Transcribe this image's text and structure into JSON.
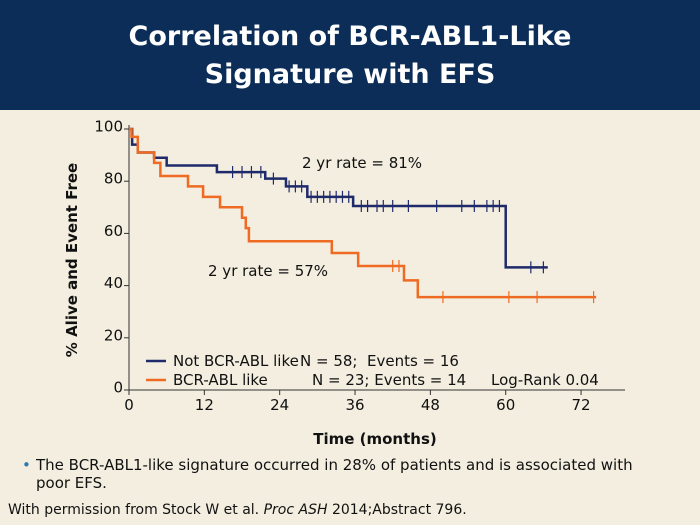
{
  "header": {
    "title_lines": [
      "Correlation of BCR-ABL1-Like",
      "Signature with EFS"
    ]
  },
  "chart_data": {
    "type": "km-step",
    "x_label": "Time (months)",
    "y_label": "% Alive and Event Free",
    "xlim": [
      0,
      79
    ],
    "ylim": [
      0,
      100
    ],
    "xticks": [
      0,
      12,
      24,
      36,
      48,
      60,
      72
    ],
    "yticks": [
      0,
      20,
      40,
      60,
      80,
      100
    ],
    "series": [
      {
        "name": "Not BCR-ABL like",
        "legend_note": "N = 58;  Events = 16",
        "color": "#1f2a6b",
        "x": [
          0,
          0.5,
          1.4,
          4,
          6,
          14,
          21.7,
          25,
          28.4,
          35.7,
          60,
          66.7
        ],
        "y": [
          100,
          94,
          91,
          89,
          86,
          83.5,
          81,
          78,
          74,
          70.5,
          47,
          47
        ],
        "censor_x": [
          16.5,
          18,
          19.5,
          21,
          23,
          25.5,
          26.5,
          27.5,
          29,
          30,
          31,
          32,
          33,
          34,
          35,
          37,
          38,
          39.5,
          40.5,
          42,
          44.5,
          49,
          53,
          55,
          57,
          58,
          59,
          64,
          66
        ],
        "censor_y": [
          83.5,
          83.5,
          83.5,
          83.5,
          81,
          78,
          78,
          78,
          74,
          74,
          74,
          74,
          74,
          74,
          74,
          70.5,
          70.5,
          70.5,
          70.5,
          70.5,
          70.5,
          70.5,
          70.5,
          70.5,
          70.5,
          70.5,
          70.5,
          47,
          47
        ]
      },
      {
        "name": "BCR-ABL like",
        "legend_note": "N = 23; Events = 14",
        "color": "#ef6a23",
        "x": [
          0,
          0.4,
          1.4,
          4,
          5,
          9.4,
          11.8,
          14.5,
          18,
          18.6,
          19.1,
          32.3,
          36.5,
          43.8,
          46,
          74.4
        ],
        "y": [
          100,
          97,
          91,
          87,
          82,
          78,
          74,
          70,
          66,
          62,
          57,
          52.5,
          47.5,
          42,
          35.6,
          35.6
        ],
        "censor_x": [
          42,
          43,
          50,
          60.5,
          65,
          74
        ],
        "censor_y": [
          47.5,
          47.5,
          35.6,
          35.6,
          35.6,
          35.6
        ]
      }
    ],
    "annotations": [
      "2 yr rate = 81%",
      "2 yr rate = 57%",
      "Log-Rank 0.04"
    ]
  },
  "bullet": "The BCR-ABL1-like signature occurred in 28% of patients and is associated with poor EFS.",
  "citation": {
    "before": "With permission from Stock W et al. ",
    "italic": "Proc ASH",
    "after": " 2014;Abstract 796."
  }
}
